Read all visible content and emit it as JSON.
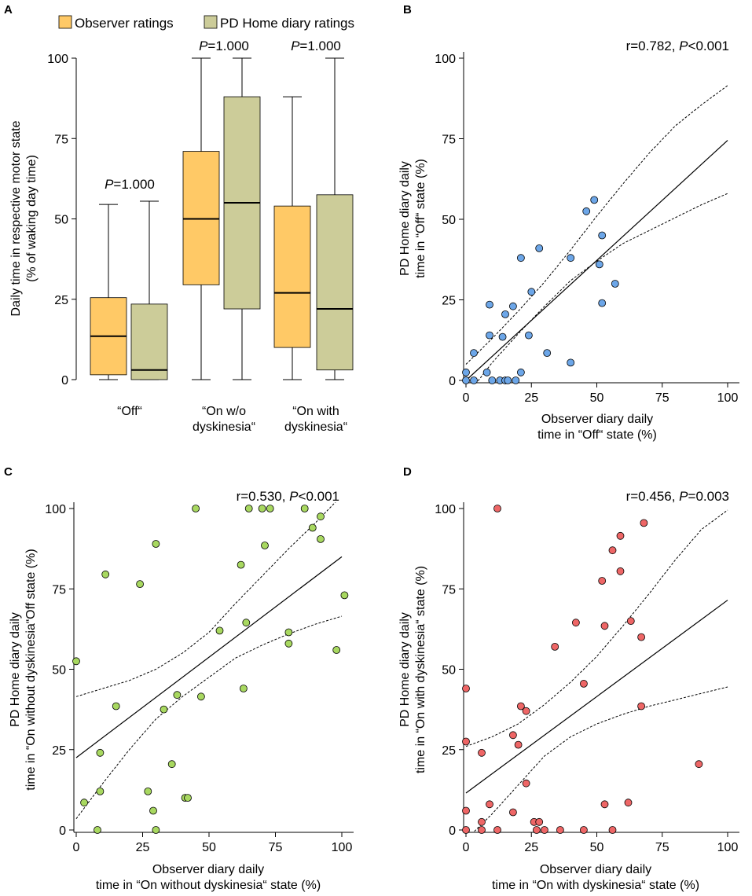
{
  "colors": {
    "observer": "#FFC966",
    "home": "#CCCC99",
    "blue": "#6CA6E8",
    "green": "#A8D860",
    "red": "#EE6666",
    "line": "#000000"
  },
  "chart_data": [
    {
      "panel": "A",
      "type": "box",
      "legend": [
        "Observer ratings",
        "PD Home diary ratings"
      ],
      "ylabel_line1": "Daily time in respective motor state",
      "ylabel_line2": "(% of waking day time)",
      "ylim": [
        0,
        100
      ],
      "yticks": [
        0,
        25,
        50,
        75,
        100
      ],
      "categories": [
        {
          "line1": "“Off“",
          "line2": ""
        },
        {
          "line1": "“On w/o",
          "line2": "dyskinesia“"
        },
        {
          "line1": "“On with",
          "line2": "dyskinesia“"
        }
      ],
      "pvalues": [
        {
          "p": "P",
          "rest": "=1.000"
        },
        {
          "p": "P",
          "rest": "=1.000"
        },
        {
          "p": "P",
          "rest": "=1.000"
        }
      ],
      "series": [
        {
          "name": "Observer ratings",
          "boxes": [
            {
              "min": 0,
              "q1": 1.5,
              "median": 13.5,
              "q3": 25.5,
              "max": 54.5
            },
            {
              "min": 0,
              "q1": 29.5,
              "median": 50,
              "q3": 71,
              "max": 100
            },
            {
              "min": 0,
              "q1": 10,
              "median": 27,
              "q3": 54,
              "max": 88
            }
          ]
        },
        {
          "name": "PD Home diary ratings",
          "boxes": [
            {
              "min": 0,
              "q1": 0,
              "median": 3,
              "q3": 23.5,
              "max": 55.5
            },
            {
              "min": 0,
              "q1": 22,
              "median": 55,
              "q3": 88,
              "max": 100
            },
            {
              "min": 0,
              "q1": 3,
              "median": 22,
              "q3": 57.5,
              "max": 100
            }
          ]
        }
      ]
    },
    {
      "panel": "B",
      "type": "scatter",
      "stat_r": "r=0.782, ",
      "stat_p": "P",
      "stat_rest": "<0.001",
      "xlabel_line1": "Observer diary daily",
      "xlabel_line2": "time in “Off“ state (%)",
      "ylabel_line1": "PD Home diary daily",
      "ylabel_line2": "time in “Off“ state (%)",
      "xlim": [
        0,
        100
      ],
      "ylim": [
        0,
        100
      ],
      "ticks": [
        0,
        25,
        50,
        75,
        100
      ],
      "color": "blue",
      "x": [
        0,
        0,
        3,
        3,
        8,
        9,
        9,
        10,
        13,
        14,
        15,
        15,
        16,
        18,
        19,
        21,
        21,
        24,
        25,
        28,
        31,
        40,
        40,
        46,
        49,
        51,
        52,
        52,
        57
      ],
      "y": [
        0,
        2.5,
        0,
        8.5,
        2.5,
        23.5,
        14,
        0,
        0,
        13.5,
        0,
        20.5,
        0,
        23,
        0,
        2.5,
        38,
        14,
        27.5,
        41,
        8.5,
        5.5,
        38,
        52.5,
        56,
        36,
        45,
        24,
        30
      ],
      "fit": {
        "intercept": 0,
        "slope": 0.745
      },
      "ci_upper": [
        [
          0,
          5
        ],
        [
          10,
          13
        ],
        [
          20,
          21.5
        ],
        [
          30,
          30.5
        ],
        [
          40,
          40.5
        ],
        [
          50,
          51
        ],
        [
          60,
          61
        ],
        [
          70,
          70.5
        ],
        [
          80,
          79
        ],
        [
          90,
          85.5
        ],
        [
          100,
          91.5
        ]
      ],
      "ci_lower": [
        [
          0,
          -5
        ],
        [
          10,
          5.5
        ],
        [
          20,
          14.5
        ],
        [
          30,
          23
        ],
        [
          40,
          31
        ],
        [
          50,
          37
        ],
        [
          60,
          42.5
        ],
        [
          70,
          46.5
        ],
        [
          80,
          50.5
        ],
        [
          90,
          54.5
        ],
        [
          100,
          58
        ]
      ]
    },
    {
      "panel": "C",
      "type": "scatter",
      "stat_r": "r=0.530, ",
      "stat_p": "P",
      "stat_rest": "<0.001",
      "xlabel_line1": "Observer diary daily",
      "xlabel_line2": "time in “On without dyskinesia“ state (%)",
      "ylabel_line1": "PD Home diary daily",
      "ylabel_line2": "time in “On without dyskinesia“Off state (%)",
      "xlim": [
        0,
        100
      ],
      "ylim": [
        0,
        100
      ],
      "ticks": [
        0,
        25,
        50,
        75,
        100
      ],
      "color": "green",
      "x": [
        0,
        3,
        8,
        9,
        9,
        11,
        15,
        24,
        27,
        29,
        30,
        30,
        33,
        36,
        38,
        41,
        42,
        45,
        47,
        54,
        62,
        63,
        64,
        65,
        70,
        71,
        73,
        80,
        80,
        86,
        89,
        92,
        92,
        98,
        101
      ],
      "y": [
        52.5,
        8.5,
        0,
        24,
        12,
        79.5,
        38.5,
        76.5,
        12,
        6,
        0,
        89,
        37.5,
        20.5,
        42,
        10,
        10,
        100,
        41.5,
        62,
        82.5,
        44,
        64.5,
        100,
        100,
        88.5,
        100,
        58,
        61.5,
        100,
        94,
        90.5,
        97.5,
        56,
        73
      ],
      "fit": {
        "intercept": 22.5,
        "slope": 0.625
      },
      "ci_upper": [
        [
          0,
          41.5
        ],
        [
          10,
          44
        ],
        [
          20,
          46.5
        ],
        [
          30,
          50
        ],
        [
          40,
          55
        ],
        [
          50,
          61.5
        ],
        [
          60,
          70.5
        ],
        [
          70,
          79
        ],
        [
          80,
          87.5
        ],
        [
          90,
          95.5
        ],
        [
          100,
          104
        ]
      ],
      "ci_lower": [
        [
          0,
          3.5
        ],
        [
          10,
          14.5
        ],
        [
          20,
          25
        ],
        [
          30,
          34.5
        ],
        [
          40,
          41.5
        ],
        [
          50,
          47.5
        ],
        [
          60,
          53.5
        ],
        [
          70,
          57.5
        ],
        [
          80,
          61
        ],
        [
          90,
          64
        ],
        [
          100,
          66.5
        ]
      ]
    },
    {
      "panel": "D",
      "type": "scatter",
      "stat_r": "r=0.456, ",
      "stat_p": "P",
      "stat_rest": "=0.003",
      "xlabel_line1": "Observer diary daily",
      "xlabel_line2": "time in “On with dyskinesia“ state (%)",
      "ylabel_line1": "PD Home diary daily",
      "ylabel_line2": "time in “On with dyskinesia“ state (%)",
      "xlim": [
        0,
        100
      ],
      "ylim": [
        0,
        100
      ],
      "ticks": [
        0,
        25,
        50,
        75,
        100
      ],
      "color": "red",
      "x": [
        0,
        0,
        0,
        0,
        6,
        6,
        6,
        9,
        12,
        12,
        18,
        18,
        20,
        21,
        23,
        23,
        26,
        27,
        28,
        30,
        34,
        36,
        42,
        45,
        45,
        52,
        53,
        53,
        56,
        56,
        59,
        59,
        62,
        63,
        67,
        67,
        68,
        89
      ],
      "y": [
        44,
        27.5,
        6,
        0,
        24,
        2.5,
        0,
        8,
        100,
        0,
        29.5,
        5.5,
        26.5,
        38.5,
        14.5,
        37,
        2.5,
        0,
        2.5,
        0,
        57,
        0,
        64.5,
        45.5,
        0,
        77.5,
        63.5,
        8,
        87,
        0,
        91.5,
        80.5,
        8.5,
        65,
        60,
        38.5,
        95.5,
        20.5
      ],
      "fit": {
        "intercept": 11.5,
        "slope": 0.6
      },
      "ci_upper": [
        [
          0,
          26
        ],
        [
          10,
          29
        ],
        [
          20,
          33
        ],
        [
          30,
          39
        ],
        [
          40,
          46
        ],
        [
          50,
          54
        ],
        [
          60,
          63.5
        ],
        [
          70,
          73.5
        ],
        [
          80,
          84
        ],
        [
          90,
          93.5
        ],
        [
          100,
          99.5
        ]
      ],
      "ci_lower": [
        [
          0,
          -3
        ],
        [
          10,
          5
        ],
        [
          20,
          14
        ],
        [
          30,
          23
        ],
        [
          40,
          29
        ],
        [
          50,
          33
        ],
        [
          60,
          36
        ],
        [
          70,
          38.5
        ],
        [
          80,
          40.5
        ],
        [
          90,
          42.5
        ],
        [
          100,
          44.5
        ]
      ]
    }
  ],
  "panel_letters": [
    "A",
    "B",
    "C",
    "D"
  ]
}
